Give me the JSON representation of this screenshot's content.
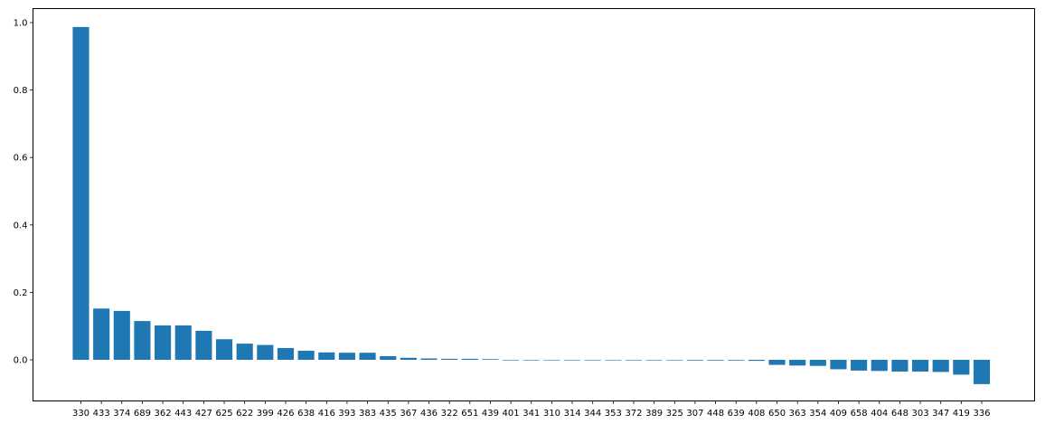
{
  "chart_data": {
    "type": "bar",
    "categories": [
      "330",
      "433",
      "374",
      "689",
      "362",
      "443",
      "427",
      "625",
      "622",
      "399",
      "426",
      "638",
      "416",
      "393",
      "383",
      "435",
      "367",
      "436",
      "322",
      "651",
      "439",
      "401",
      "341",
      "310",
      "314",
      "344",
      "353",
      "372",
      "389",
      "325",
      "307",
      "448",
      "639",
      "408",
      "650",
      "363",
      "354",
      "409",
      "658",
      "404",
      "648",
      "303",
      "347",
      "419",
      "336"
    ],
    "values": [
      0.987,
      0.152,
      0.145,
      0.115,
      0.102,
      0.102,
      0.086,
      0.061,
      0.048,
      0.044,
      0.035,
      0.027,
      0.022,
      0.021,
      0.021,
      0.011,
      0.006,
      0.004,
      0.003,
      0.003,
      0.002,
      0,
      0,
      0,
      0,
      0,
      0,
      0,
      0,
      0,
      -0.002,
      -0.002,
      -0.002,
      -0.003,
      -0.015,
      -0.017,
      -0.018,
      -0.028,
      -0.032,
      -0.033,
      -0.035,
      -0.035,
      -0.036,
      -0.044,
      -0.072
    ],
    "ylim": [
      -0.12,
      1.04
    ],
    "yticks": [
      0.0,
      0.2,
      0.4,
      0.6,
      0.8,
      1.0
    ],
    "ytick_labels": [
      "0.0",
      "0.2",
      "0.4",
      "0.6",
      "0.8",
      "1.0"
    ],
    "bar_color": "#1f77b4",
    "title": "",
    "xlabel": "",
    "ylabel": "",
    "grid": false
  }
}
